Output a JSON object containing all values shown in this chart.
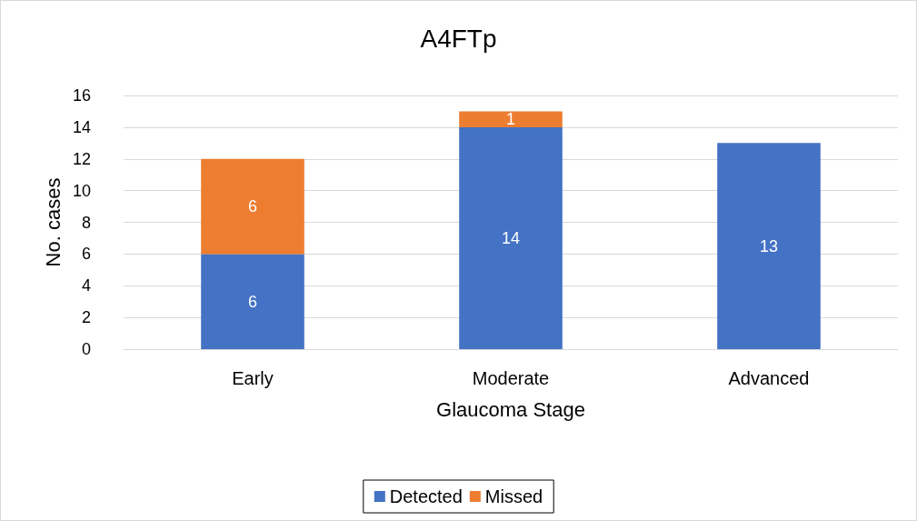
{
  "chart_data": {
    "type": "bar",
    "title": "A4FTp",
    "xlabel": "Glaucoma Stage",
    "ylabel": "No. cases",
    "categories": [
      "Early",
      "Moderate",
      "Advanced"
    ],
    "series": [
      {
        "name": "Detected",
        "color": "#4472c4",
        "values": [
          6,
          14,
          13
        ]
      },
      {
        "name": "Missed",
        "color": "#ed7d31",
        "values": [
          6,
          1,
          null
        ]
      }
    ],
    "stacked": true,
    "data_labels": true,
    "ylim": [
      0,
      16
    ],
    "yticks": [
      0,
      2,
      4,
      6,
      8,
      10,
      12,
      14,
      16
    ],
    "grid": "y",
    "legend": "bottom"
  }
}
